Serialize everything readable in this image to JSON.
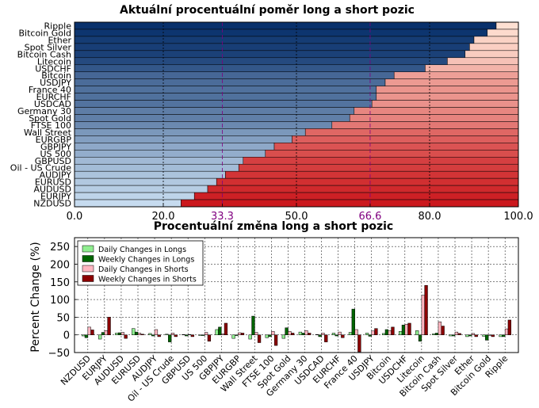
{
  "chart_data": [
    {
      "type": "bar",
      "orientation": "horizontal-stacked",
      "title": "Aktuální procentuální poměr long a short pozic",
      "xlim": [
        0,
        100
      ],
      "xticks": [
        "0.0",
        "20.0",
        "33.3",
        "50.0",
        "66.6",
        "80.0",
        "100.0"
      ],
      "xtick_values": [
        0,
        20,
        33.3,
        50,
        66.6,
        80,
        100
      ],
      "highlight_ticks": [
        "33.3",
        "66.6"
      ],
      "categories": [
        "Ripple",
        "Bitcoin Gold",
        "Ether",
        "Spot Silver",
        "Bitcoin Cash",
        "Litecoin",
        "USDCHF",
        "Bitcoin",
        "USDJPY",
        "France 40",
        "EURCHF",
        "USDCAD",
        "Germany 30",
        "Spot Gold",
        "FTSE 100",
        "Wall Street",
        "EURGBP",
        "GBPJPY",
        "US 500",
        "GBPUSD",
        "Oil - US Crude",
        "AUDJPY",
        "EURUSD",
        "AUDUSD",
        "EURJPY",
        "NZDUSD"
      ],
      "series": [
        {
          "values": [
            95,
            93,
            90,
            89,
            88,
            84,
            79,
            72,
            70,
            68,
            68,
            67,
            63,
            62,
            58,
            52,
            49,
            45,
            43,
            38,
            37,
            34,
            32,
            30,
            27,
            24
          ]
        },
        {
          "values": [
            5,
            7,
            10,
            11,
            12,
            16,
            21,
            28,
            30,
            32,
            32,
            33,
            37,
            38,
            42,
            48,
            51,
            55,
            57,
            62,
            63,
            66,
            68,
            70,
            73,
            76
          ]
        }
      ],
      "grid": true
    },
    {
      "type": "bar",
      "title": "Procentuální změna long a short pozic",
      "ylabel": "Percent Change (%)",
      "ylim": [
        -50,
        275
      ],
      "yticks": [
        "−50",
        "0",
        "50",
        "100",
        "150",
        "200",
        "250"
      ],
      "ytick_values": [
        -50,
        0,
        50,
        100,
        150,
        200,
        250
      ],
      "legend_position": "top-left",
      "categories": [
        "NZDUSD",
        "EURJPY",
        "AUDUSD",
        "EURUSD",
        "AUDJPY",
        "Oil - US Crude",
        "GBPUSD",
        "US 500",
        "GBPJPY",
        "EURGBP",
        "Wall Street",
        "FTSE 100",
        "Spot Gold",
        "Germany 30",
        "USDCAD",
        "EURCHF",
        "France 40",
        "USDJPY",
        "Bitcoin",
        "USDCHF",
        "Litecoin",
        "Bitcoin Cash",
        "Spot Silver",
        "Ether",
        "Bitcoin Gold",
        "Ripple"
      ],
      "series": [
        {
          "name": "Daily Changes in Longs",
          "color": "#90ee90",
          "values": [
            -3,
            -12,
            5,
            18,
            4,
            2,
            1,
            -2,
            15,
            -10,
            -12,
            -8,
            -10,
            8,
            1,
            5,
            7,
            5,
            4,
            10,
            12,
            3,
            -3,
            -5,
            -4,
            -5
          ]
        },
        {
          "name": "Weekly Changes in Longs",
          "color": "#006400",
          "values": [
            -8,
            7,
            6,
            8,
            -3,
            -20,
            -3,
            -2,
            22,
            -2,
            53,
            -5,
            20,
            5,
            -5,
            -3,
            73,
            -4,
            15,
            28,
            -18,
            5,
            -3,
            -3,
            -15,
            -5
          ]
        },
        {
          "name": "Daily Changes in Shorts",
          "color": "#ffb6c1",
          "values": [
            22,
            12,
            7,
            5,
            15,
            5,
            1,
            7,
            3,
            6,
            7,
            10,
            10,
            12,
            5,
            8,
            15,
            11,
            12,
            30,
            112,
            37,
            8,
            4,
            -2,
            17
          ]
        },
        {
          "name": "Weekly Changes in Shorts",
          "color": "#8b0000",
          "values": [
            14,
            50,
            -10,
            2,
            -5,
            -5,
            -5,
            -18,
            33,
            5,
            -22,
            -30,
            5,
            5,
            -20,
            -8,
            -48,
            18,
            22,
            33,
            140,
            25,
            4,
            -5,
            -5,
            42
          ]
        }
      ],
      "grid": true
    }
  ]
}
